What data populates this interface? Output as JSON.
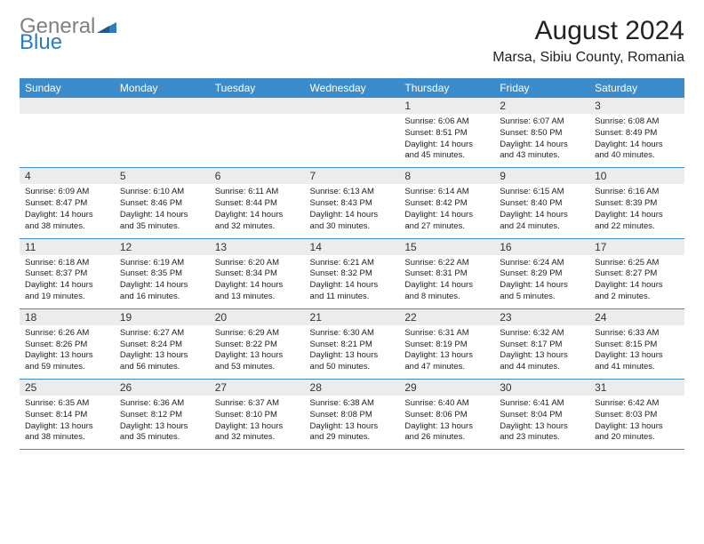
{
  "logo": {
    "part1": "General",
    "part2": "Blue"
  },
  "title": "August 2024",
  "location": "Marsa, Sibiu County, Romania",
  "colors": {
    "header_bg": "#3c8ccc",
    "header_text": "#ffffff",
    "daynum_bg": "#ececec",
    "border": "#3c8ccc",
    "logo_gray": "#808080",
    "logo_blue": "#2f7bbf"
  },
  "dow": [
    "Sunday",
    "Monday",
    "Tuesday",
    "Wednesday",
    "Thursday",
    "Friday",
    "Saturday"
  ],
  "weeks": [
    [
      {
        "n": "",
        "sr": "",
        "ss": "",
        "dl": ""
      },
      {
        "n": "",
        "sr": "",
        "ss": "",
        "dl": ""
      },
      {
        "n": "",
        "sr": "",
        "ss": "",
        "dl": ""
      },
      {
        "n": "",
        "sr": "",
        "ss": "",
        "dl": ""
      },
      {
        "n": "1",
        "sr": "6:06 AM",
        "ss": "8:51 PM",
        "dl": "14 hours and 45 minutes."
      },
      {
        "n": "2",
        "sr": "6:07 AM",
        "ss": "8:50 PM",
        "dl": "14 hours and 43 minutes."
      },
      {
        "n": "3",
        "sr": "6:08 AM",
        "ss": "8:49 PM",
        "dl": "14 hours and 40 minutes."
      }
    ],
    [
      {
        "n": "4",
        "sr": "6:09 AM",
        "ss": "8:47 PM",
        "dl": "14 hours and 38 minutes."
      },
      {
        "n": "5",
        "sr": "6:10 AM",
        "ss": "8:46 PM",
        "dl": "14 hours and 35 minutes."
      },
      {
        "n": "6",
        "sr": "6:11 AM",
        "ss": "8:44 PM",
        "dl": "14 hours and 32 minutes."
      },
      {
        "n": "7",
        "sr": "6:13 AM",
        "ss": "8:43 PM",
        "dl": "14 hours and 30 minutes."
      },
      {
        "n": "8",
        "sr": "6:14 AM",
        "ss": "8:42 PM",
        "dl": "14 hours and 27 minutes."
      },
      {
        "n": "9",
        "sr": "6:15 AM",
        "ss": "8:40 PM",
        "dl": "14 hours and 24 minutes."
      },
      {
        "n": "10",
        "sr": "6:16 AM",
        "ss": "8:39 PM",
        "dl": "14 hours and 22 minutes."
      }
    ],
    [
      {
        "n": "11",
        "sr": "6:18 AM",
        "ss": "8:37 PM",
        "dl": "14 hours and 19 minutes."
      },
      {
        "n": "12",
        "sr": "6:19 AM",
        "ss": "8:35 PM",
        "dl": "14 hours and 16 minutes."
      },
      {
        "n": "13",
        "sr": "6:20 AM",
        "ss": "8:34 PM",
        "dl": "14 hours and 13 minutes."
      },
      {
        "n": "14",
        "sr": "6:21 AM",
        "ss": "8:32 PM",
        "dl": "14 hours and 11 minutes."
      },
      {
        "n": "15",
        "sr": "6:22 AM",
        "ss": "8:31 PM",
        "dl": "14 hours and 8 minutes."
      },
      {
        "n": "16",
        "sr": "6:24 AM",
        "ss": "8:29 PM",
        "dl": "14 hours and 5 minutes."
      },
      {
        "n": "17",
        "sr": "6:25 AM",
        "ss": "8:27 PM",
        "dl": "14 hours and 2 minutes."
      }
    ],
    [
      {
        "n": "18",
        "sr": "6:26 AM",
        "ss": "8:26 PM",
        "dl": "13 hours and 59 minutes."
      },
      {
        "n": "19",
        "sr": "6:27 AM",
        "ss": "8:24 PM",
        "dl": "13 hours and 56 minutes."
      },
      {
        "n": "20",
        "sr": "6:29 AM",
        "ss": "8:22 PM",
        "dl": "13 hours and 53 minutes."
      },
      {
        "n": "21",
        "sr": "6:30 AM",
        "ss": "8:21 PM",
        "dl": "13 hours and 50 minutes."
      },
      {
        "n": "22",
        "sr": "6:31 AM",
        "ss": "8:19 PM",
        "dl": "13 hours and 47 minutes."
      },
      {
        "n": "23",
        "sr": "6:32 AM",
        "ss": "8:17 PM",
        "dl": "13 hours and 44 minutes."
      },
      {
        "n": "24",
        "sr": "6:33 AM",
        "ss": "8:15 PM",
        "dl": "13 hours and 41 minutes."
      }
    ],
    [
      {
        "n": "25",
        "sr": "6:35 AM",
        "ss": "8:14 PM",
        "dl": "13 hours and 38 minutes."
      },
      {
        "n": "26",
        "sr": "6:36 AM",
        "ss": "8:12 PM",
        "dl": "13 hours and 35 minutes."
      },
      {
        "n": "27",
        "sr": "6:37 AM",
        "ss": "8:10 PM",
        "dl": "13 hours and 32 minutes."
      },
      {
        "n": "28",
        "sr": "6:38 AM",
        "ss": "8:08 PM",
        "dl": "13 hours and 29 minutes."
      },
      {
        "n": "29",
        "sr": "6:40 AM",
        "ss": "8:06 PM",
        "dl": "13 hours and 26 minutes."
      },
      {
        "n": "30",
        "sr": "6:41 AM",
        "ss": "8:04 PM",
        "dl": "13 hours and 23 minutes."
      },
      {
        "n": "31",
        "sr": "6:42 AM",
        "ss": "8:03 PM",
        "dl": "13 hours and 20 minutes."
      }
    ]
  ],
  "labels": {
    "sunrise": "Sunrise:",
    "sunset": "Sunset:",
    "daylight": "Daylight:"
  }
}
